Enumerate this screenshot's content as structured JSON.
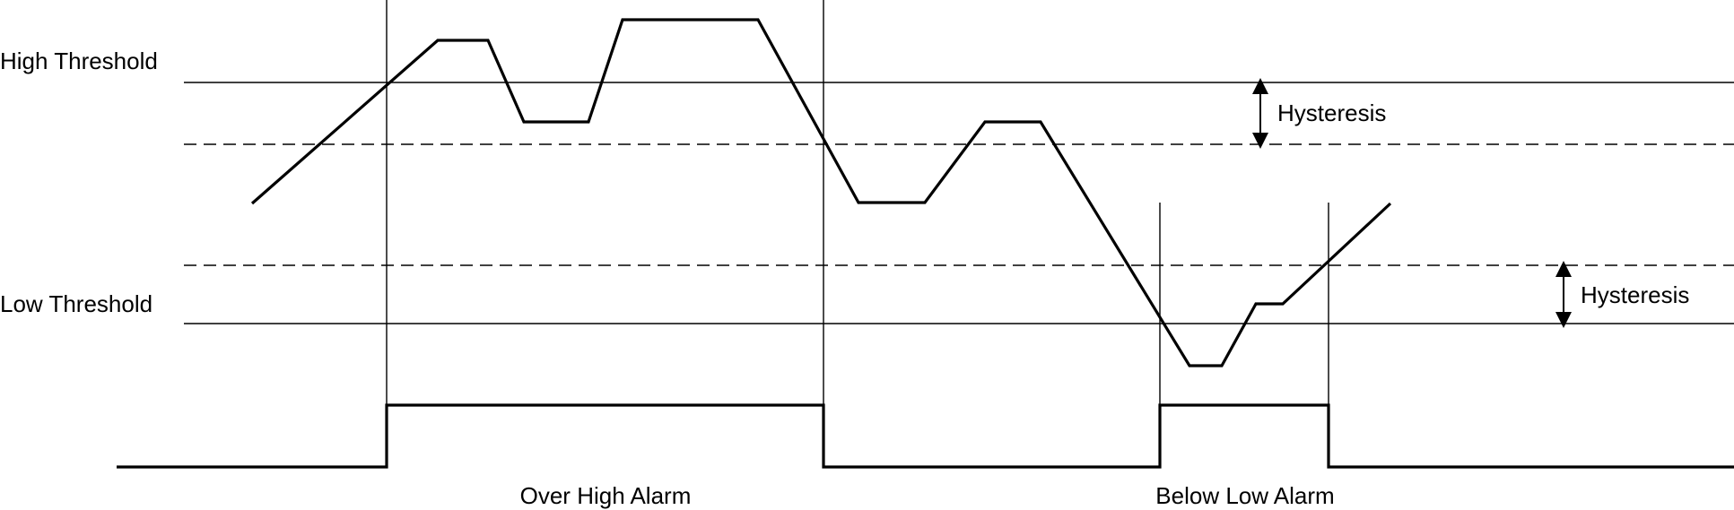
{
  "labels": {
    "high_threshold": "High Threshold",
    "low_threshold": "Low Threshold",
    "hysteresis_high": "Hysteresis",
    "hysteresis_low": "Hysteresis",
    "over_high_alarm": "Over High Alarm",
    "below_low_alarm": "Below Low Alarm"
  },
  "colors": {
    "line": "#000000",
    "background": "#ffffff"
  }
}
